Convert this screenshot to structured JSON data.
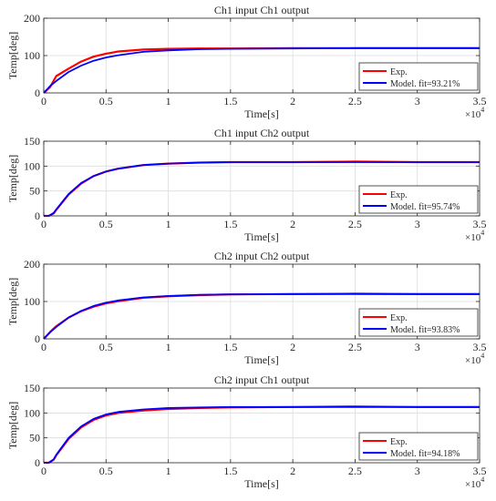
{
  "chart_data": [
    {
      "type": "line",
      "title": "Ch1 input Ch1 output",
      "xlabel": "Time[s]",
      "ylabel": "Temp[deg]",
      "xlim": [
        0,
        35000
      ],
      "ylim": [
        0,
        200
      ],
      "x_exponent_label": "×10",
      "x_exponent_power": "4",
      "xticks": [
        0,
        5000,
        10000,
        15000,
        20000,
        25000,
        30000,
        35000
      ],
      "xtick_labels": [
        "0",
        "0.5",
        "1",
        "1.5",
        "2",
        "2.5",
        "3",
        "3.5"
      ],
      "yticks": [
        0,
        100,
        200
      ],
      "ytick_labels": [
        "0",
        "100",
        "200"
      ],
      "grid": true,
      "legend": "lower-right",
      "x": [
        0,
        500,
        1000,
        2000,
        3000,
        4000,
        5000,
        6000,
        8000,
        10000,
        12500,
        15000,
        20000,
        25000,
        30000,
        35000
      ],
      "series": [
        {
          "name": "Exp.",
          "color": "#ff0000",
          "values": [
            0,
            15,
            45,
            65,
            84,
            97,
            105,
            111,
            116,
            118,
            119,
            119,
            120,
            120,
            120,
            120
          ]
        },
        {
          "name": "Model. fit=93.21%",
          "color": "#0000ff",
          "values": [
            0,
            18,
            32,
            56,
            73,
            86,
            95,
            101,
            110,
            114,
            117,
            118,
            119,
            120,
            120,
            120
          ]
        }
      ]
    },
    {
      "type": "line",
      "title": "Ch1 input Ch2 output",
      "xlabel": "Time[s]",
      "ylabel": "Temp[deg]",
      "xlim": [
        0,
        35000
      ],
      "ylim": [
        0,
        150
      ],
      "x_exponent_label": "×10",
      "x_exponent_power": "4",
      "xticks": [
        0,
        5000,
        10000,
        15000,
        20000,
        25000,
        30000,
        35000
      ],
      "xtick_labels": [
        "0",
        "0.5",
        "1",
        "1.5",
        "2",
        "2.5",
        "3",
        "3.5"
      ],
      "yticks": [
        0,
        50,
        100,
        150
      ],
      "ytick_labels": [
        "0",
        "50",
        "100",
        "150"
      ],
      "grid": true,
      "legend": "lower-right",
      "x": [
        0,
        400,
        800,
        1000,
        2000,
        3000,
        4000,
        5000,
        6000,
        8000,
        10000,
        12500,
        15000,
        20000,
        25000,
        30000,
        35000
      ],
      "series": [
        {
          "name": "Exp.",
          "color": "#ff0000",
          "values": [
            0,
            0,
            5,
            12,
            43,
            65,
            80,
            89,
            95,
            102,
            105,
            107,
            108,
            108,
            109,
            108,
            108
          ]
        },
        {
          "name": "Model. fit=95.74%",
          "color": "#0000ff",
          "values": [
            0,
            0,
            6,
            13,
            44,
            66,
            80,
            89,
            95,
            102,
            105,
            107,
            108,
            108,
            108,
            108,
            108
          ]
        }
      ]
    },
    {
      "type": "line",
      "title": "Ch2 input Ch2 output",
      "xlabel": "Time[s]",
      "ylabel": "Temp[deg]",
      "xlim": [
        0,
        35000
      ],
      "ylim": [
        0,
        200
      ],
      "x_exponent_label": "×10",
      "x_exponent_power": "4",
      "xticks": [
        0,
        5000,
        10000,
        15000,
        20000,
        25000,
        30000,
        35000
      ],
      "xtick_labels": [
        "0",
        "0.5",
        "1",
        "1.5",
        "2",
        "2.5",
        "3",
        "3.5"
      ],
      "yticks": [
        0,
        100,
        200
      ],
      "ytick_labels": [
        "0",
        "100",
        "200"
      ],
      "grid": true,
      "legend": "lower-right",
      "x": [
        0,
        500,
        1000,
        2000,
        3000,
        4000,
        5000,
        6000,
        8000,
        10000,
        12500,
        15000,
        20000,
        25000,
        30000,
        35000
      ],
      "series": [
        {
          "name": "Exp.",
          "color": "#ff0000",
          "values": [
            0,
            18,
            34,
            57,
            74,
            86,
            95,
            101,
            110,
            114,
            117,
            119,
            120,
            121,
            120,
            120
          ]
        },
        {
          "name": "Model. fit=93.83%",
          "color": "#0000ff",
          "values": [
            0,
            17,
            32,
            57,
            75,
            88,
            97,
            103,
            111,
            115,
            118,
            119,
            120,
            120,
            120,
            120
          ]
        }
      ]
    },
    {
      "type": "line",
      "title": "Ch2 input Ch1 output",
      "xlabel": "Time[s]",
      "ylabel": "Temp[deg]",
      "xlim": [
        0,
        35000
      ],
      "ylim": [
        0,
        150
      ],
      "x_exponent_label": "×10",
      "x_exponent_power": "4",
      "xticks": [
        0,
        5000,
        10000,
        15000,
        20000,
        25000,
        30000,
        35000
      ],
      "xtick_labels": [
        "0",
        "0.5",
        "1",
        "1.5",
        "2",
        "2.5",
        "3",
        "3.5"
      ],
      "yticks": [
        0,
        50,
        100,
        150
      ],
      "ytick_labels": [
        "0",
        "50",
        "100",
        "150"
      ],
      "grid": true,
      "legend": "lower-right",
      "x": [
        0,
        400,
        800,
        1000,
        2000,
        3000,
        4000,
        5000,
        6000,
        8000,
        10000,
        12500,
        15000,
        20000,
        25000,
        30000,
        35000
      ],
      "series": [
        {
          "name": "Exp.",
          "color": "#ff0000",
          "values": [
            0,
            0,
            6,
            15,
            48,
            71,
            86,
            95,
            100,
            105,
            108,
            110,
            111,
            112,
            113,
            112,
            112
          ]
        },
        {
          "name": "Model. fit=94.18%",
          "color": "#0000ff",
          "values": [
            0,
            0,
            7,
            16,
            50,
            73,
            88,
            97,
            102,
            107,
            110,
            111,
            112,
            112,
            112,
            112,
            112
          ]
        }
      ]
    }
  ]
}
